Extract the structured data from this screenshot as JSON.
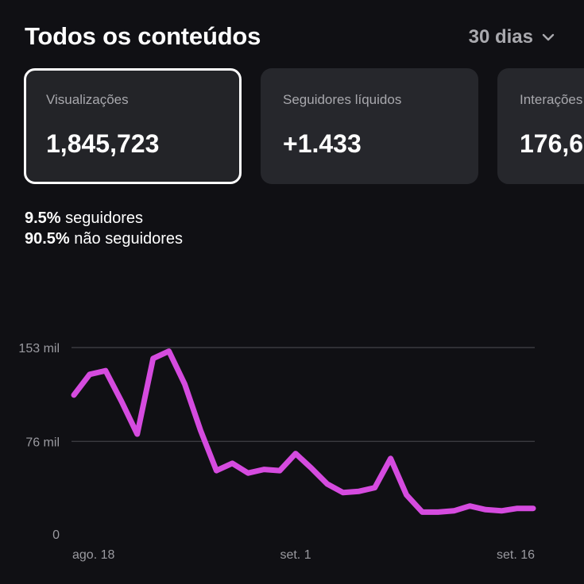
{
  "header": {
    "title": "Todos os conteúdos",
    "period_label": "30 dias",
    "period_icon": "chevron-down-icon"
  },
  "cards": [
    {
      "label": "Visualizações",
      "value": "1,845,723",
      "selected": true
    },
    {
      "label": "Seguidores líquidos",
      "value": "+1.433",
      "selected": false
    },
    {
      "label": "Interações",
      "value": "176,6",
      "selected": false
    }
  ],
  "audience": {
    "followers_pct": "9.5%",
    "followers_label": "seguidores",
    "non_followers_pct": "90.5%",
    "non_followers_label": "não seguidores"
  },
  "colors": {
    "background": "#101014",
    "card": "#26272c",
    "line": "#d54bdf",
    "muted_text": "#a8a8ad"
  },
  "chart_data": {
    "type": "line",
    "y_ticks": [
      {
        "value": 153000,
        "label": "153 mil"
      },
      {
        "value": 76000,
        "label": "76 mil"
      },
      {
        "value": 0,
        "label": "0"
      }
    ],
    "x_ticks": [
      {
        "day": 0,
        "label": "ago. 18"
      },
      {
        "day": 14,
        "label": "set. 1"
      },
      {
        "day": 29,
        "label": "set. 16"
      }
    ],
    "ylim": [
      0,
      153000
    ],
    "grid": true,
    "series": [
      {
        "color": "#d54bdf",
        "values": [
          114000,
          131000,
          134000,
          109000,
          82000,
          144000,
          150000,
          123000,
          85000,
          52000,
          58000,
          50000,
          53000,
          52000,
          66000,
          54000,
          41000,
          34000,
          35000,
          38000,
          62000,
          32000,
          18000,
          18000,
          19000,
          23000,
          20000,
          19000,
          21000,
          21000
        ]
      }
    ]
  }
}
